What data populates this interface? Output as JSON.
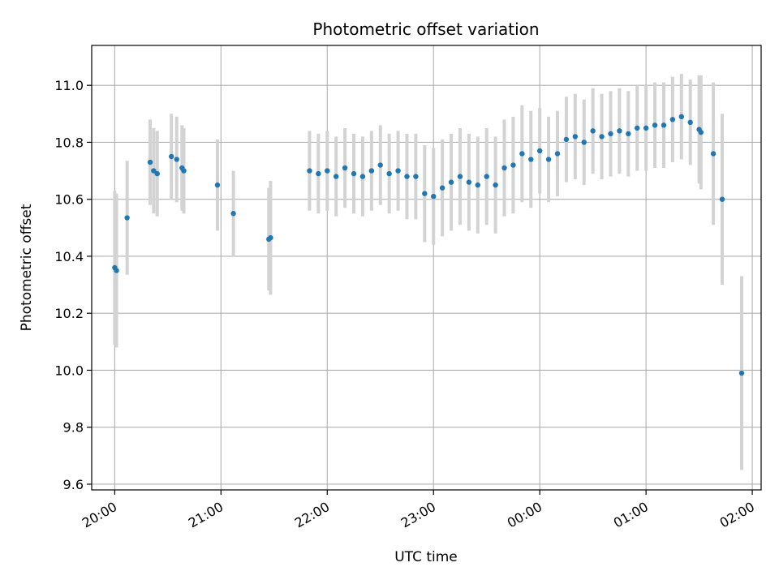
{
  "chart_data": {
    "type": "scatter",
    "title": "Photometric offset variation",
    "xlabel": "UTC time",
    "ylabel": "Photometric offset",
    "x_unit": "UTC time (HH:MM, evening through next morning)",
    "xlim": [
      "19:47",
      "02:05"
    ],
    "ylim": [
      9.58,
      11.14
    ],
    "grid": true,
    "legend": "none",
    "colors": {
      "points": "#1f77b4",
      "error_bars": "#d3d3d3",
      "grid": "#b0b0b0"
    },
    "x_tick_labels": [
      "20:00",
      "21:00",
      "22:00",
      "23:00",
      "00:00",
      "01:00",
      "02:00"
    ],
    "y_tick_labels": [
      "9.6",
      "9.8",
      "10.0",
      "10.2",
      "10.4",
      "10.6",
      "10.8",
      "11.0"
    ],
    "series": [
      {
        "x": [
          "20:00",
          "20:01",
          "20:07",
          "20:20",
          "20:22",
          "20:24",
          "20:32",
          "20:35",
          "20:38",
          "20:39",
          "20:58",
          "21:07",
          "21:27",
          "21:28",
          "21:50",
          "21:55",
          "22:00",
          "22:05",
          "22:10",
          "22:15",
          "22:20",
          "22:25",
          "22:30",
          "22:35",
          "22:40",
          "22:45",
          "22:50",
          "22:55",
          "23:00",
          "23:05",
          "23:10",
          "23:15",
          "23:20",
          "23:25",
          "23:30",
          "23:35",
          "23:40",
          "23:45",
          "23:50",
          "23:55",
          "00:00",
          "00:05",
          "00:10",
          "00:15",
          "00:20",
          "00:25",
          "00:30",
          "00:35",
          "00:40",
          "00:45",
          "00:50",
          "00:55",
          "01:00",
          "01:05",
          "01:10",
          "01:15",
          "01:20",
          "01:25",
          "01:30",
          "01:31",
          "01:38",
          "01:43",
          "01:54"
        ],
        "y": [
          10.36,
          10.35,
          10.535,
          10.73,
          10.7,
          10.69,
          10.75,
          10.74,
          10.71,
          10.7,
          10.65,
          10.55,
          10.46,
          10.465,
          10.7,
          10.69,
          10.7,
          10.68,
          10.71,
          10.69,
          10.68,
          10.7,
          10.72,
          10.69,
          10.7,
          10.68,
          10.68,
          10.62,
          10.61,
          10.64,
          10.66,
          10.68,
          10.66,
          10.65,
          10.68,
          10.65,
          10.71,
          10.72,
          10.76,
          10.74,
          10.77,
          10.74,
          10.76,
          10.81,
          10.82,
          10.8,
          10.84,
          10.82,
          10.83,
          10.84,
          10.83,
          10.85,
          10.85,
          10.86,
          10.86,
          10.88,
          10.89,
          10.87,
          10.845,
          10.835,
          10.76,
          10.6,
          9.99
        ],
        "err": [
          0.27,
          0.27,
          0.2,
          0.15,
          0.15,
          0.15,
          0.15,
          0.15,
          0.15,
          0.15,
          0.16,
          0.15,
          0.18,
          0.2,
          0.14,
          0.14,
          0.14,
          0.14,
          0.14,
          0.14,
          0.14,
          0.14,
          0.14,
          0.14,
          0.14,
          0.15,
          0.15,
          0.17,
          0.17,
          0.17,
          0.17,
          0.17,
          0.17,
          0.17,
          0.17,
          0.17,
          0.17,
          0.17,
          0.17,
          0.17,
          0.15,
          0.15,
          0.15,
          0.15,
          0.15,
          0.15,
          0.15,
          0.15,
          0.15,
          0.15,
          0.15,
          0.15,
          0.15,
          0.15,
          0.15,
          0.15,
          0.15,
          0.15,
          0.19,
          0.2,
          0.25,
          0.3,
          0.34
        ]
      }
    ]
  }
}
